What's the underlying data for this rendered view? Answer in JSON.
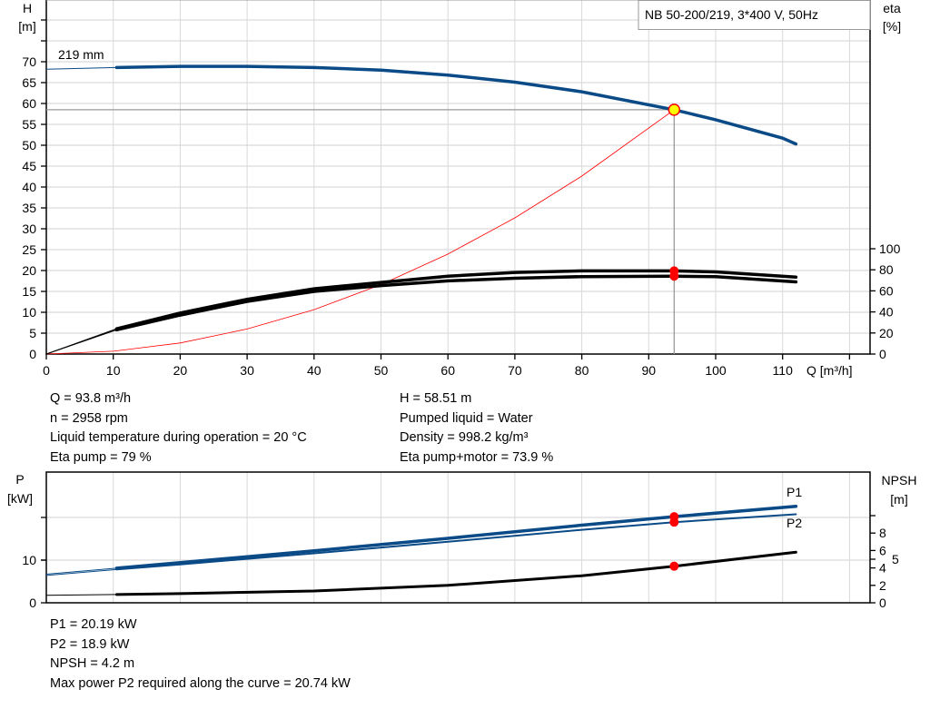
{
  "legend_box": "NB 50-200/219, 3*400 V, 50Hz",
  "colors": {
    "head": "#0a4a86",
    "power": "#0a4a86",
    "efficiency": "#000000",
    "npsh": "#000000",
    "system_curve": "#ff0000",
    "duty_point": "#ffff00",
    "marker": "#ff0000",
    "grid": "#d9d9d9"
  },
  "chart_data": [
    {
      "type": "line",
      "xlabel": "Q [m³/h]",
      "ylabel_left": [
        "H",
        "[m]"
      ],
      "ylabel_right": [
        "eta",
        "[%]"
      ],
      "xlim": [
        0,
        123
      ],
      "ylim_left": [
        0,
        85
      ],
      "ylim_right_ticks": [
        0,
        20,
        40,
        60,
        80,
        100
      ],
      "x_ticks": [
        0,
        10,
        20,
        30,
        40,
        50,
        60,
        70,
        80,
        90,
        100,
        110
      ],
      "y_ticks_left": [
        0,
        5,
        10,
        15,
        20,
        25,
        30,
        35,
        40,
        45,
        50,
        55,
        60,
        65,
        70
      ],
      "grid": true,
      "curve_label": "219 mm",
      "series": [
        {
          "id": "head",
          "axis": "left",
          "x": [
            0,
            10.5,
            20,
            30,
            40,
            50,
            60,
            70,
            80,
            93.8,
            100,
            110,
            112
          ],
          "y": [
            68.2,
            68.6,
            68.9,
            68.9,
            68.6,
            68.0,
            66.8,
            65.1,
            62.8,
            58.51,
            56.1,
            51.7,
            50.3
          ]
        },
        {
          "id": "eta-pump",
          "axis": "right",
          "x": [
            0,
            10.5,
            20,
            30,
            40,
            50,
            60,
            70,
            80,
            93.8,
            100,
            112
          ],
          "y": [
            0,
            24,
            39,
            52,
            62,
            68,
            74,
            77.5,
            79,
            79,
            78,
            73
          ]
        },
        {
          "id": "eta-pump-motor",
          "axis": "right",
          "x": [
            0,
            10.5,
            20,
            30,
            40,
            50,
            60,
            70,
            80,
            93.8,
            100,
            112
          ],
          "y": [
            0,
            23,
            37,
            50,
            59.5,
            65,
            69.5,
            72,
            73.5,
            73.9,
            73.5,
            68.5
          ]
        },
        {
          "id": "system-curve",
          "axis": "left",
          "x": [
            0,
            10,
            20,
            30,
            40,
            50,
            60,
            70,
            80,
            93.8
          ],
          "y": [
            0,
            0.67,
            2.66,
            5.99,
            10.64,
            16.63,
            23.94,
            32.6,
            42.6,
            58.51
          ]
        }
      ],
      "duty_point": {
        "Q": 93.8,
        "H": 58.51,
        "eta_pump": 79,
        "eta_pump_motor": 73.9
      }
    },
    {
      "type": "line",
      "xlim": [
        0,
        123
      ],
      "ylabel_left": [
        "P",
        "[kW]"
      ],
      "ylabel_right": [
        "NPSH",
        "[m]"
      ],
      "y_ticks_left": [
        0,
        10
      ],
      "y_ticks_right": [
        0,
        2,
        4,
        5,
        6,
        8
      ],
      "grid": true,
      "series": [
        {
          "name": "P1",
          "axis": "left",
          "x": [
            0,
            10.5,
            20,
            40,
            60,
            80,
            93.8,
            112
          ],
          "y": [
            6.7,
            8.1,
            9.4,
            12.2,
            15.1,
            18.2,
            20.19,
            22.6
          ]
        },
        {
          "name": "P2",
          "axis": "left",
          "x": [
            0,
            10.5,
            20,
            40,
            60,
            80,
            93.8,
            112
          ],
          "y": [
            6.4,
            7.8,
            9.0,
            11.6,
            14.3,
            17.1,
            18.9,
            20.74
          ]
        },
        {
          "id": "npsh",
          "axis": "right",
          "x": [
            0,
            10.5,
            20,
            40,
            60,
            80,
            93.8,
            112
          ],
          "y": [
            0.85,
            0.95,
            1.05,
            1.35,
            2.0,
            3.1,
            4.2,
            5.8
          ]
        }
      ],
      "duty_point": {
        "Q": 93.8,
        "P1": 20.19,
        "P2": 18.9,
        "NPSH": 4.2
      }
    }
  ],
  "info_top": {
    "left": [
      "Q = 93.8 m³/h",
      "n = 2958 rpm",
      "Liquid temperature during operation = 20 °C",
      "Eta pump = 79 %"
    ],
    "right": [
      "H = 58.51 m",
      "Pumped liquid = Water",
      "Density = 998.2 kg/m³",
      "Eta pump+motor = 73.9 %"
    ]
  },
  "info_bottom": [
    "P1 = 20.19 kW",
    "P2 = 18.9 kW",
    "NPSH = 4.2 m",
    "Max power P2 required along the curve = 20.74 kW"
  ]
}
